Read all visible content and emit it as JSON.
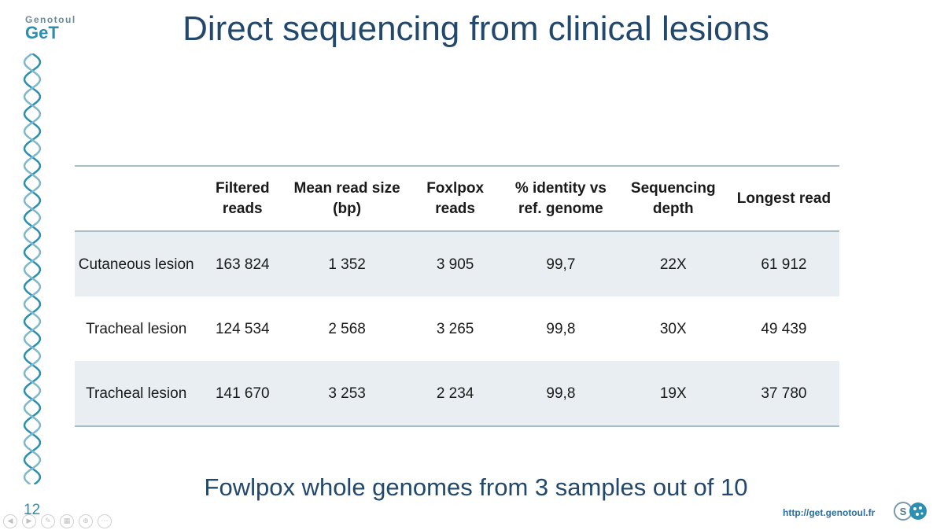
{
  "logo": {
    "line1": "Genotoul",
    "line2": "GeT"
  },
  "title": "Direct sequencing from clinical lesions",
  "table": {
    "headers": [
      "",
      "Filtered reads",
      "Mean read size (bp)",
      "Foxlpox reads",
      "% identity vs ref. genome",
      "Sequencing depth",
      "Longest read"
    ],
    "rows": [
      [
        "Cutaneous lesion",
        "163 824",
        "1 352",
        "3 905",
        "99,7",
        "22X",
        "61 912"
      ],
      [
        "Tracheal lesion",
        "124 534",
        "2 568",
        "3 265",
        "99,8",
        "30X",
        "49 439"
      ],
      [
        "Tracheal lesion",
        "141 670",
        "3 253",
        "2 234",
        "99,8",
        "19X",
        "37 780"
      ]
    ]
  },
  "caption": "Fowlpox whole genomes from 3 samples out of 10",
  "slide_number": "12",
  "footer_url": "http://get.genotoul.fr",
  "colors": {
    "title": "#22486b",
    "accent": "#2a8fb0",
    "row_shade": "#e8eef1",
    "rule": "#a7bcc8"
  },
  "controls": [
    "previous-icon",
    "next-icon",
    "pen-icon",
    "slides-icon",
    "zoom-icon",
    "more-icon"
  ]
}
